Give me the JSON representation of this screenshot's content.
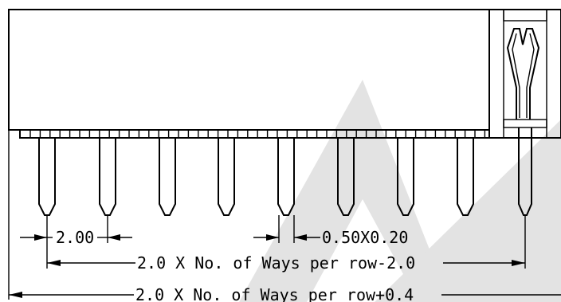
{
  "drawing": {
    "dimensions": {
      "pitch": "2.00",
      "pin_section": "0.50X0.20",
      "inner_span": "2.0 X No. of Ways per row-2.0",
      "overall_length": "2.0 X No. of Ways per row+0.4"
    },
    "colors": {
      "line": "#000000",
      "watermark": "#e3e3e3",
      "background": "#ffffff"
    }
  }
}
